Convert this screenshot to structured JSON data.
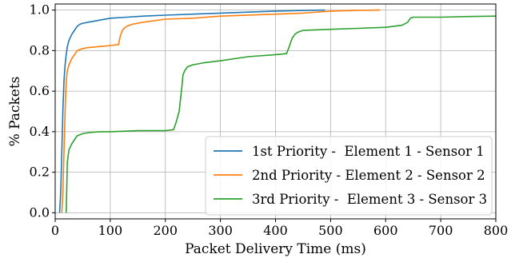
{
  "chart_data": {
    "type": "line",
    "title": "",
    "xlabel": "Packet Delivery Time (ms)",
    "ylabel": "% Packets",
    "xlim": [
      0,
      800
    ],
    "ylim": [
      -0.03,
      1.03
    ],
    "xticks": [
      0,
      100,
      200,
      300,
      400,
      500,
      600,
      700,
      800
    ],
    "yticks": [
      0.0,
      0.2,
      0.4,
      0.6,
      0.8,
      1.0
    ],
    "xtick_labels": [
      "0",
      "100",
      "200",
      "300",
      "400",
      "500",
      "600",
      "700",
      "800"
    ],
    "ytick_labels": [
      "0.0",
      "0.2",
      "0.4",
      "0.6",
      "0.8",
      "1.0"
    ],
    "grid": true,
    "legend_position": "bottom-right",
    "series": [
      {
        "name": "1st Priority -  Element 1 - Sensor 1",
        "color": "#1f77b4",
        "x": [
          8,
          10,
          12,
          14,
          16,
          18,
          20,
          22,
          25,
          30,
          35,
          40,
          45,
          50,
          60,
          70,
          80,
          100,
          130,
          160,
          200,
          250,
          300,
          350,
          400,
          450,
          490
        ],
        "y": [
          0.0,
          0.1,
          0.3,
          0.5,
          0.65,
          0.73,
          0.78,
          0.82,
          0.85,
          0.88,
          0.9,
          0.92,
          0.93,
          0.935,
          0.94,
          0.945,
          0.95,
          0.96,
          0.965,
          0.97,
          0.975,
          0.98,
          0.985,
          0.99,
          0.995,
          0.998,
          1.0
        ]
      },
      {
        "name": "2nd Priority - Element 2 - Sensor 2",
        "color": "#ff7f0e",
        "x": [
          12,
          14,
          16,
          18,
          20,
          22,
          25,
          30,
          35,
          40,
          50,
          60,
          80,
          100,
          115,
          118,
          122,
          125,
          130,
          140,
          160,
          200,
          250,
          300,
          400,
          450,
          500,
          550,
          590
        ],
        "y": [
          0.0,
          0.1,
          0.3,
          0.5,
          0.65,
          0.7,
          0.73,
          0.76,
          0.78,
          0.8,
          0.81,
          0.815,
          0.82,
          0.825,
          0.83,
          0.87,
          0.9,
          0.91,
          0.92,
          0.93,
          0.94,
          0.955,
          0.96,
          0.97,
          0.98,
          0.985,
          0.995,
          0.999,
          1.0
        ]
      },
      {
        "name": "3rd Priority -  Element 3 - Sensor 3",
        "color": "#2ca02c",
        "x": [
          20,
          22,
          25,
          30,
          35,
          40,
          50,
          60,
          80,
          100,
          150,
          200,
          215,
          220,
          225,
          230,
          232,
          235,
          240,
          250,
          270,
          300,
          350,
          400,
          420,
          425,
          430,
          435,
          440,
          450,
          500,
          550,
          600,
          630,
          640,
          645,
          650,
          700,
          750,
          800
        ],
        "y": [
          0.0,
          0.25,
          0.31,
          0.34,
          0.36,
          0.38,
          0.39,
          0.395,
          0.4,
          0.4,
          0.405,
          0.405,
          0.41,
          0.45,
          0.5,
          0.62,
          0.68,
          0.7,
          0.72,
          0.73,
          0.74,
          0.75,
          0.77,
          0.78,
          0.785,
          0.82,
          0.86,
          0.88,
          0.89,
          0.9,
          0.905,
          0.91,
          0.915,
          0.925,
          0.94,
          0.96,
          0.965,
          0.965,
          0.968,
          0.97
        ]
      }
    ]
  }
}
